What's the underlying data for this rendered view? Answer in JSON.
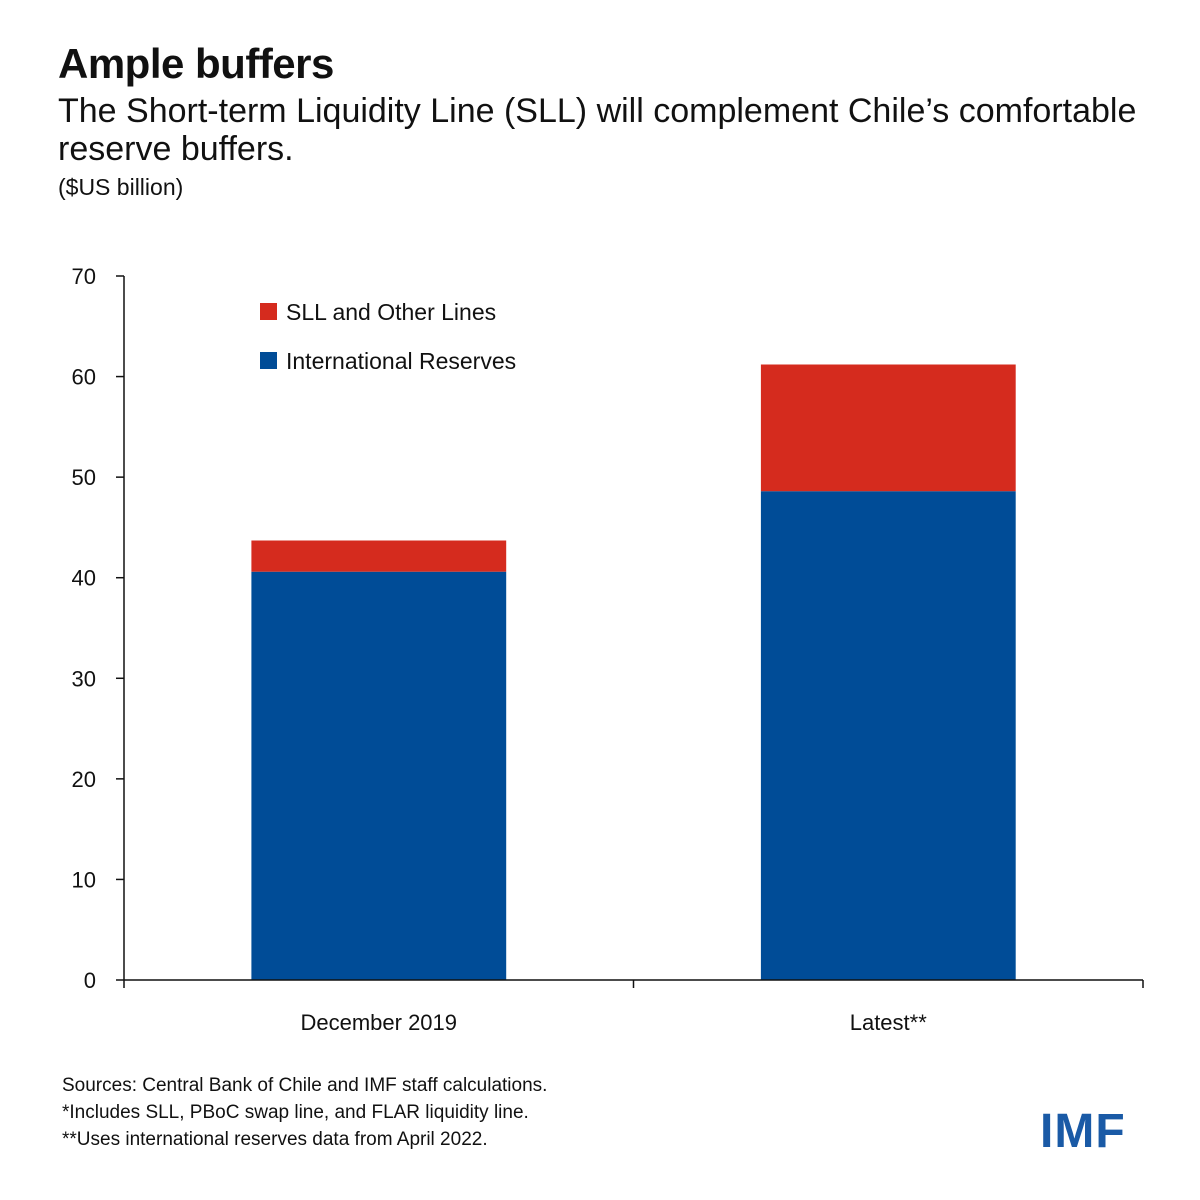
{
  "header": {
    "title": "Ample buffers",
    "subtitle": "The Short-term Liquidity Line (SLL) will complement Chile’s comfortable reserve buffers.",
    "units": "($US billion)"
  },
  "chart_data": {
    "type": "bar",
    "stacked": true,
    "categories": [
      "December 2019",
      "Latest**"
    ],
    "series": [
      {
        "name": "International Reserves",
        "values": [
          40.6,
          48.6
        ],
        "color": "#004c97"
      },
      {
        "name": "SLL and Other Lines",
        "values": [
          3.1,
          12.6
        ],
        "color": "#d52b1e"
      }
    ],
    "legend_order": [
      "SLL and Other Lines",
      "International Reserves"
    ],
    "legend_position": "top-left",
    "ylim": [
      0,
      70
    ],
    "yticks": [
      0,
      10,
      20,
      30,
      40,
      50,
      60,
      70
    ],
    "grid": false,
    "title": "Ample buffers",
    "xlabel": "",
    "ylabel": "($US billion)"
  },
  "footnotes": {
    "sources": "Sources: Central Bank of Chile and IMF staff calculations.",
    "note1": "*Includes SLL, PBoC swap line, and FLAR liquidity line.",
    "note2": "**Uses international reserves data from April 2022."
  },
  "logo": {
    "text": "IMF",
    "color": "#1a5aa6"
  }
}
